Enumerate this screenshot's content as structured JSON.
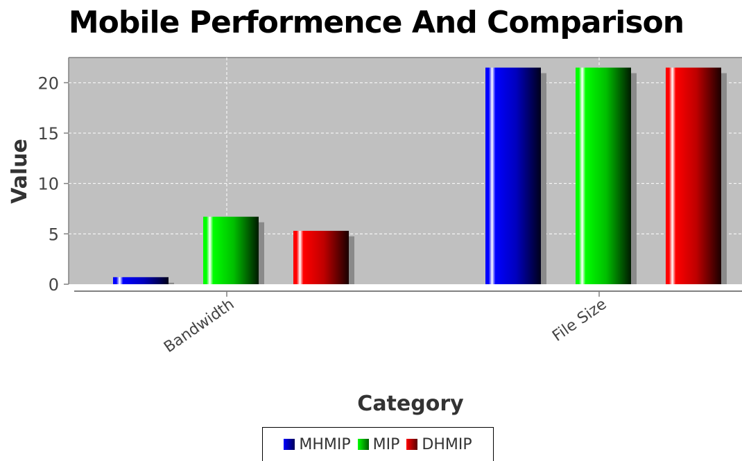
{
  "chart_data": {
    "type": "bar",
    "title": "Mobile Performence And Comparison",
    "xlabel": "Category",
    "ylabel": "Value",
    "categories": [
      "Bandwidth",
      "File Size"
    ],
    "series": [
      {
        "name": "MHMIP",
        "values": [
          0.7,
          21.5
        ],
        "color": "#0000ff"
      },
      {
        "name": "MIP",
        "values": [
          6.7,
          21.5
        ],
        "color": "#00ff00"
      },
      {
        "name": "DHMIP",
        "values": [
          5.3,
          21.5
        ],
        "color": "#ff0000"
      }
    ],
    "ylim": [
      0,
      22.5
    ],
    "yticks": [
      0,
      5,
      10,
      15,
      20
    ],
    "grid": true,
    "legend_position": "bottom",
    "plot_background": "#c0c0c0"
  }
}
